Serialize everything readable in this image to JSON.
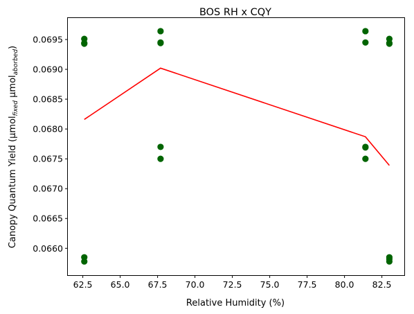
{
  "chart_data": {
    "type": "scatter",
    "title": "BOS RH x CQY",
    "xlabel": "Relative Humidity (%)",
    "ylabel": {
      "prefix": "Canopy Quantum Yield (μmol",
      "sub1": "fixed",
      "middle": " μmol",
      "sub2": "aborbed",
      "suffix": ")"
    },
    "xlim": [
      61.5,
      84.0
    ],
    "ylim": [
      0.06555,
      0.06986
    ],
    "xticks": [
      62.5,
      65.0,
      67.5,
      70.0,
      72.5,
      75.0,
      77.5,
      80.0,
      82.5
    ],
    "xtick_labels": [
      "62.5",
      "65.0",
      "67.5",
      "70.0",
      "72.5",
      "75.0",
      "77.5",
      "80.0",
      "82.5"
    ],
    "yticks": [
      0.066,
      0.0665,
      0.067,
      0.0675,
      0.068,
      0.0685,
      0.069,
      0.0695
    ],
    "ytick_labels": [
      "0.0660",
      "0.0665",
      "0.0670",
      "0.0675",
      "0.0680",
      "0.0685",
      "0.0690",
      "0.0695"
    ],
    "grid": false,
    "series": [
      {
        "kind": "scatter",
        "color": "#006400",
        "points": [
          [
            62.6,
            0.06951
          ],
          [
            62.6,
            0.06944
          ],
          [
            62.6,
            0.06943
          ],
          [
            62.6,
            0.06585
          ],
          [
            62.6,
            0.06578
          ],
          [
            67.7,
            0.06964
          ],
          [
            67.7,
            0.06945
          ],
          [
            67.7,
            0.06944
          ],
          [
            67.7,
            0.0677
          ],
          [
            67.7,
            0.0675
          ],
          [
            81.4,
            0.06964
          ],
          [
            81.4,
            0.06945
          ],
          [
            81.4,
            0.0677
          ],
          [
            81.4,
            0.06769
          ],
          [
            81.4,
            0.0675
          ],
          [
            83.0,
            0.06951
          ],
          [
            83.0,
            0.06944
          ],
          [
            83.0,
            0.06943
          ],
          [
            83.0,
            0.06585
          ],
          [
            83.0,
            0.06582
          ],
          [
            83.0,
            0.06578
          ]
        ]
      },
      {
        "kind": "line",
        "color": "#ff0000",
        "x": [
          62.6,
          67.7,
          81.4,
          83.0
        ],
        "y": [
          0.06816,
          0.06902,
          0.06787,
          0.06739
        ]
      }
    ]
  }
}
